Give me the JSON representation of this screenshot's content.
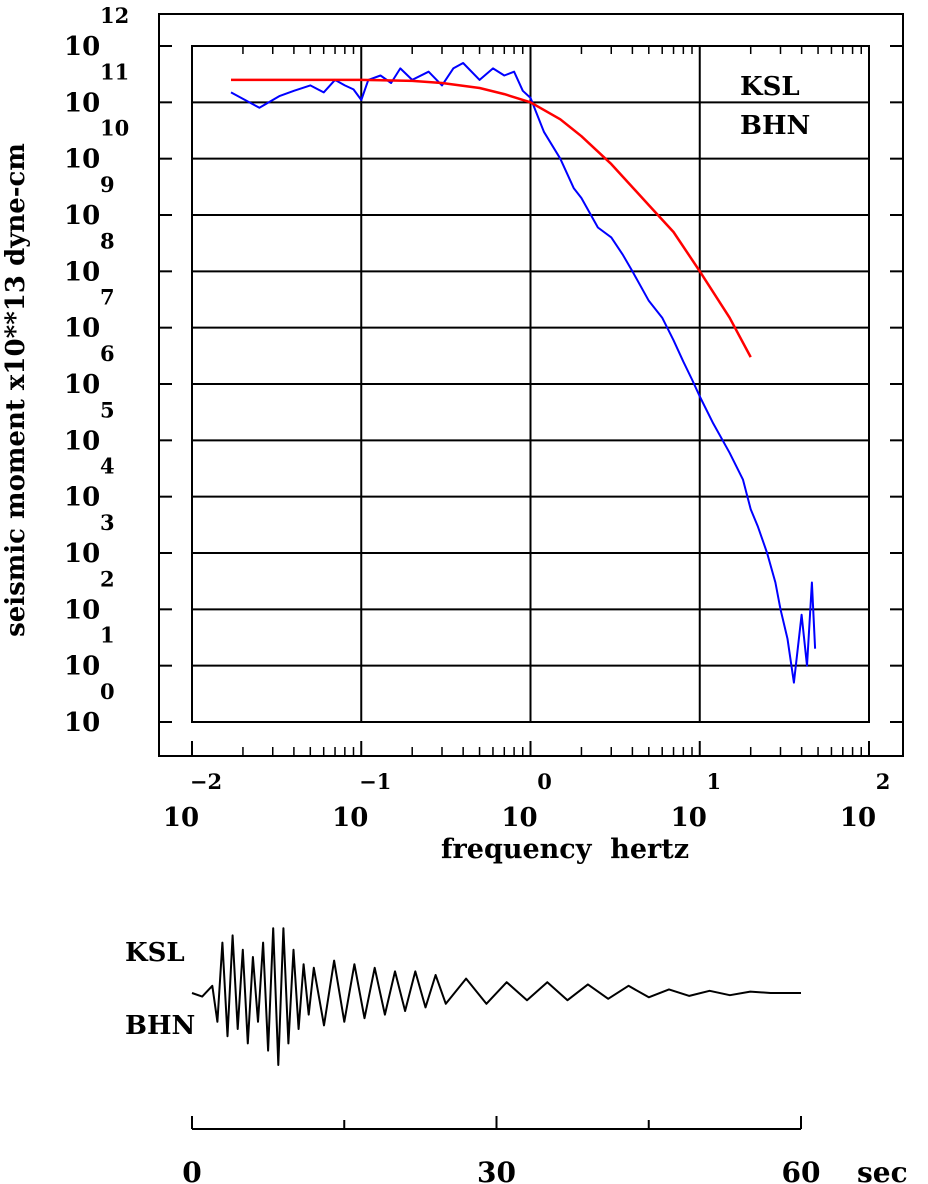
{
  "chart_data": [
    {
      "type": "line",
      "xscale": "log",
      "yscale": "log",
      "xlim": [
        0.01,
        100
      ],
      "ylim": [
        1,
        1000000000000.0
      ],
      "grid": true,
      "xlabel": "frequency  hertz",
      "ylabel": "seismic moment x10**13 dyne-cm",
      "x_ticks": [
        {
          "base": "10",
          "exp": "−2"
        },
        {
          "base": "10",
          "exp": "−1"
        },
        {
          "base": "10",
          "exp": "0"
        },
        {
          "base": "10",
          "exp": "1"
        },
        {
          "base": "10",
          "exp": "2"
        }
      ],
      "y_ticks": [
        {
          "base": "10",
          "exp": "0"
        },
        {
          "base": "10",
          "exp": "1"
        },
        {
          "base": "10",
          "exp": "2"
        },
        {
          "base": "10",
          "exp": "3"
        },
        {
          "base": "10",
          "exp": "4"
        },
        {
          "base": "10",
          "exp": "5"
        },
        {
          "base": "10",
          "exp": "6"
        },
        {
          "base": "10",
          "exp": "7"
        },
        {
          "base": "10",
          "exp": "8"
        },
        {
          "base": "10",
          "exp": "9"
        },
        {
          "base": "10",
          "exp": "10"
        },
        {
          "base": "10",
          "exp": "11"
        },
        {
          "base": "10",
          "exp": "12"
        }
      ],
      "annotation": {
        "station": "KSL",
        "component": "BHN"
      },
      "series": [
        {
          "color": "#0000ff",
          "x": [
            0.017,
            0.025,
            0.033,
            0.04,
            0.05,
            0.06,
            0.07,
            0.08,
            0.09,
            0.1,
            0.11,
            0.13,
            0.15,
            0.17,
            0.2,
            0.25,
            0.3,
            0.35,
            0.4,
            0.5,
            0.6,
            0.7,
            0.8,
            0.9,
            1.0,
            1.2,
            1.5,
            1.8,
            2.0,
            2.5,
            3.0,
            3.5,
            4.0,
            5.0,
            6.0,
            7.0,
            8.0,
            9.0,
            10.0,
            12.0,
            15.0,
            18.0,
            20.0,
            22.0,
            25.0,
            28.0,
            30.0,
            33.0,
            36.0,
            40.0,
            43.0,
            46.0,
            48.0
          ],
          "y": [
            150000000000.0,
            80000000000.0,
            130000000000.0,
            160000000000.0,
            200000000000.0,
            150000000000.0,
            250000000000.0,
            200000000000.0,
            170000000000.0,
            110000000000.0,
            250000000000.0,
            300000000000.0,
            220000000000.0,
            400000000000.0,
            250000000000.0,
            350000000000.0,
            200000000000.0,
            400000000000.0,
            500000000000.0,
            250000000000.0,
            400000000000.0,
            300000000000.0,
            350000000000.0,
            160000000000.0,
            120000000000.0,
            30000000000.0,
            10000000000.0,
            3000000000.0,
            2000000000.0,
            600000000.0,
            400000000.0,
            200000000.0,
            100000000.0,
            30000000.0,
            15000000.0,
            6000000.0,
            2500000.0,
            1200000.0,
            600000.0,
            200000.0,
            60000.0,
            20000.0,
            6000.0,
            3000.0,
            1000.0,
            300.0,
            100.0,
            30.0,
            5,
            80.0,
            10.0,
            300.0,
            20.0
          ]
        },
        {
          "color": "#ff0000",
          "x": [
            0.017,
            0.05,
            0.1,
            0.2,
            0.3,
            0.5,
            0.7,
            1.0,
            1.5,
            2.0,
            3.0,
            5.0,
            7.0,
            10.0,
            15.0,
            20.0
          ],
          "y": [
            250000000000.0,
            250000000000.0,
            250000000000.0,
            240000000000.0,
            220000000000.0,
            180000000000.0,
            140000000000.0,
            100000000000.0,
            50000000000.0,
            25000000000.0,
            8000000000.0,
            1500000000.0,
            500000000.0,
            100000000.0,
            15000000.0,
            3000000.0
          ]
        }
      ]
    },
    {
      "type": "line",
      "station": "KSL",
      "component": "BHN",
      "xlim": [
        0,
        60
      ],
      "x_tick_labels": [
        "0",
        "30",
        "60"
      ],
      "unit": "sec",
      "series": [
        {
          "color": "#000000",
          "x": [
            0,
            1,
            2,
            2.5,
            3,
            3.5,
            4,
            4.5,
            5,
            5.5,
            6,
            6.5,
            7,
            7.5,
            8,
            8.5,
            9,
            9.5,
            10,
            10.5,
            11,
            11.5,
            12,
            13,
            14,
            15,
            16,
            17,
            18,
            19,
            20,
            21,
            22,
            23,
            24,
            25,
            27,
            29,
            31,
            33,
            35,
            37,
            39,
            41,
            43,
            45,
            47,
            49,
            51,
            53,
            55,
            57,
            60
          ],
          "y": [
            0,
            -0.05,
            0.1,
            -0.4,
            0.7,
            -0.6,
            0.8,
            -0.5,
            0.6,
            -0.7,
            0.5,
            -0.4,
            0.7,
            -0.8,
            0.9,
            -1.0,
            0.9,
            -0.7,
            0.6,
            -0.5,
            0.4,
            -0.3,
            0.35,
            -0.45,
            0.45,
            -0.4,
            0.4,
            -0.35,
            0.35,
            -0.3,
            0.3,
            -0.25,
            0.3,
            -0.2,
            0.25,
            -0.15,
            0.2,
            -0.15,
            0.15,
            -0.1,
            0.15,
            -0.1,
            0.12,
            -0.08,
            0.1,
            -0.06,
            0.05,
            -0.04,
            0.03,
            -0.03,
            0.02,
            0.0,
            0.0
          ]
        }
      ]
    }
  ]
}
